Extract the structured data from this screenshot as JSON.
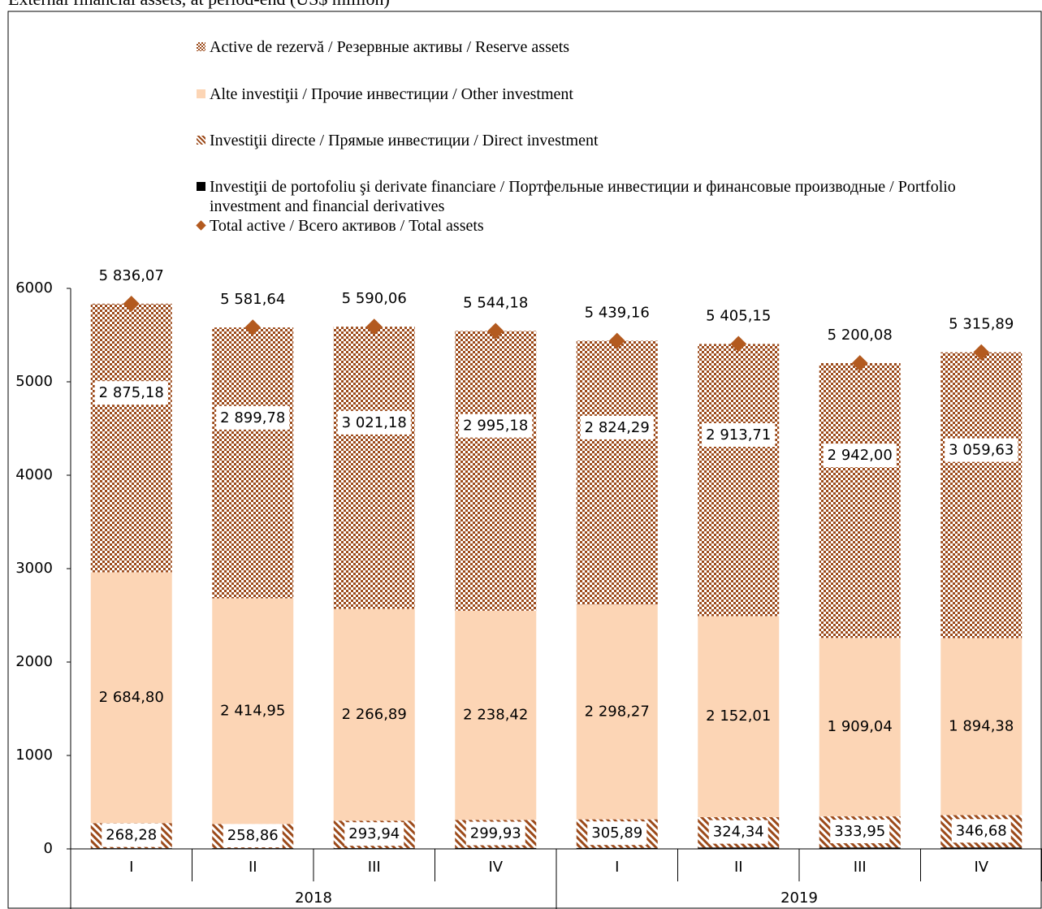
{
  "chart_data": {
    "type": "stacked-bar",
    "title": "External financial assets, at period-end (US$ million)",
    "categories": [
      "I",
      "II",
      "III",
      "IV",
      "I",
      "II",
      "III",
      "IV"
    ],
    "groups": [
      "2018",
      "2019"
    ],
    "ylim": [
      0,
      6000
    ],
    "yticks": [
      0,
      1000,
      2000,
      3000,
      4000,
      5000,
      6000
    ],
    "series": [
      {
        "name": "Investiţii de portofoliu şi derivate financiare / Портфельные инвестиции и финансовые производные / Portfolio investment and financial derivatives",
        "color": "#000000",
        "pattern": "solid",
        "values": [
          7.81,
          8.05,
          8.05,
          10.65,
          10.71,
          15.09,
          15.09,
          15.2
        ]
      },
      {
        "name": "Investiţii directe /  Прямые инвестиции / Direct investment",
        "color": "#9c4a1a",
        "pattern": "stripes",
        "values": [
          268.28,
          258.86,
          293.94,
          299.93,
          305.89,
          324.34,
          333.95,
          346.68
        ],
        "value_labels": [
          "268,28",
          "258,86",
          "293,94",
          "299,93",
          "305,89",
          "324,34",
          "333,95",
          "346,68"
        ]
      },
      {
        "name": "Alte investiţii / Прочие инвестиции / Other investment",
        "color": "#fcd5b5",
        "pattern": "solid",
        "values": [
          2684.8,
          2414.95,
          2266.89,
          2238.42,
          2298.27,
          2152.01,
          1909.04,
          1894.38
        ],
        "value_labels": [
          "2 684,80",
          "2 414,95",
          "2 266,89",
          "2 238,42",
          "2 298,27",
          "2 152,01",
          "1 909,04",
          "1 894,38"
        ]
      },
      {
        "name": "Active de rezervă / Резервные активы / Reserve assets",
        "color": "#9c4a1a",
        "pattern": "checker",
        "values": [
          2875.18,
          2899.78,
          3021.18,
          2995.18,
          2824.29,
          2913.71,
          2942.0,
          3059.63
        ],
        "value_labels": [
          "2 875,18",
          "2 899,78",
          "3 021,18",
          "2 995,18",
          "2 824,29",
          "2 913,71",
          "2 942,00",
          "3 059,63"
        ]
      }
    ],
    "total": {
      "name": "Total active / Всего активов / Total assets",
      "color": "#b35a1f",
      "values": [
        5836.07,
        5581.64,
        5590.06,
        5544.18,
        5439.16,
        5405.15,
        5200.08,
        5315.89
      ],
      "value_labels": [
        "5 836,07",
        "5 581,64",
        "5 590,06",
        "5 544,18",
        "5 439,16",
        "5 405,15",
        "5 200,08",
        "5 315,89"
      ]
    }
  }
}
